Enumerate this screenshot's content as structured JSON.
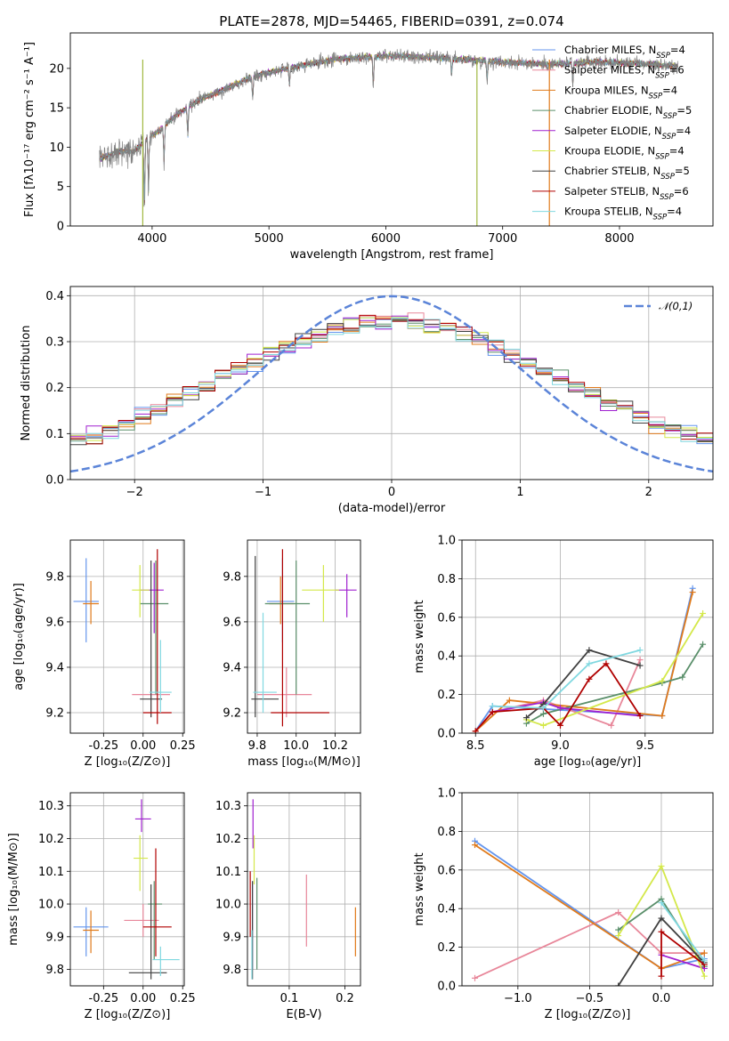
{
  "title": "PLATE=2878, MJD=54465, FIBERID=0391, z=0.074",
  "models": [
    {
      "label": "Chabrier MILES, N",
      "sub": "SSP",
      "n": "=4",
      "color": "#6495ED"
    },
    {
      "label": "Salpeter MILES, N",
      "sub": "SSP",
      "n": "=6",
      "color": "#E8879A"
    },
    {
      "label": "Kroupa MILES, N",
      "sub": "SSP",
      "n": "=4",
      "color": "#E07B1C"
    },
    {
      "label": "Chabrier ELODIE, N",
      "sub": "SSP",
      "n": "=5",
      "color": "#5A8F6A"
    },
    {
      "label": "Salpeter ELODIE, N",
      "sub": "SSP",
      "n": "=4",
      "color": "#A020D0"
    },
    {
      "label": "Kroupa ELODIE, N",
      "sub": "SSP",
      "n": "=4",
      "color": "#D4E84A"
    },
    {
      "label": "Chabrier STELIB, N",
      "sub": "SSP",
      "n": "=5",
      "color": "#404040"
    },
    {
      "label": "Salpeter STELIB, N",
      "sub": "SSP",
      "n": "=6",
      "color": "#B00000"
    },
    {
      "label": "Kroupa STELIB, N",
      "sub": "SSP",
      "n": "=4",
      "color": "#80D8E0"
    }
  ],
  "chart_data": [
    {
      "type": "line",
      "panel": "spectrum",
      "xlabel": "wavelength [Angstrom, rest frame]",
      "ylabel": "Flux [fλ10⁻¹⁷ erg cm⁻² s⁻¹ A⁻¹]",
      "xlim": [
        3300,
        8800
      ],
      "ylim": [
        0,
        24.5
      ],
      "xticks": [
        4000,
        5000,
        6000,
        7000,
        8000
      ],
      "yticks": [
        0,
        5,
        10,
        15,
        20
      ],
      "data_color": "#808080",
      "continuum": [
        [
          3550,
          8.5
        ],
        [
          3700,
          9.5
        ],
        [
          3850,
          9.5
        ],
        [
          3950,
          11
        ],
        [
          4050,
          12
        ],
        [
          4200,
          14
        ],
        [
          4400,
          16
        ],
        [
          4600,
          17.2
        ],
        [
          4800,
          18.6
        ],
        [
          5000,
          19.5
        ],
        [
          5300,
          20.4
        ],
        [
          5600,
          21.2
        ],
        [
          6000,
          21.6
        ],
        [
          6300,
          21.4
        ],
        [
          6600,
          21.2
        ],
        [
          7000,
          20.8
        ],
        [
          7400,
          20.5
        ],
        [
          7800,
          20.8
        ],
        [
          8200,
          20.6
        ],
        [
          8500,
          20.2
        ]
      ],
      "absorption": [
        [
          3934,
          8.5
        ],
        [
          3969,
          7.5
        ],
        [
          4102,
          5
        ],
        [
          4305,
          4
        ],
        [
          4861,
          3
        ],
        [
          5175,
          2.5
        ],
        [
          5893,
          4
        ],
        [
          6563,
          2
        ],
        [
          6867,
          2.5
        ],
        [
          7600,
          3
        ]
      ],
      "artifacts": [
        {
          "x": 3920,
          "color": "#A0B840"
        },
        {
          "x": 6780,
          "color": "#A0B840"
        },
        {
          "x": 7400,
          "color": "#E07B1C"
        }
      ],
      "legend": "top-right",
      "grid": false
    },
    {
      "type": "line",
      "panel": "residual_histogram",
      "xlabel": "(data-model)/error",
      "ylabel": "Normed distribution",
      "xlim": [
        -2.5,
        2.5
      ],
      "ylim": [
        0,
        0.42
      ],
      "xticks": [
        -2,
        -1,
        0,
        1,
        2
      ],
      "yticks": [
        0.0,
        0.1,
        0.2,
        0.3,
        0.4
      ],
      "bins": 40,
      "reference": {
        "name": "𝒩(0,1)",
        "mu": 0,
        "sigma": 1,
        "color": "#5B84D8"
      },
      "legend": "top-right",
      "grid": true
    },
    {
      "type": "scatter",
      "panel": "Z_vs_age",
      "xlabel": "Z [log₁₀(Z/Z⊙)]",
      "ylabel": "age  [log₁₀(age/yr)]",
      "xlim": [
        -0.46,
        0.26
      ],
      "ylim": [
        9.11,
        9.96
      ],
      "xticks": [
        "-0.25",
        "0.00",
        "0.25"
      ],
      "xtickv": [
        -0.25,
        0,
        0.25
      ],
      "yticks": [
        "9.2",
        "9.4",
        "9.6",
        "9.8"
      ],
      "ytickv": [
        9.2,
        9.4,
        9.6,
        9.8
      ],
      "grid": true,
      "points": [
        {
          "m": 0,
          "x": -0.36,
          "y": 9.69,
          "xe": [
            -0.44,
            -0.28
          ],
          "ye": [
            9.51,
            9.88
          ]
        },
        {
          "m": 1,
          "x": 0.05,
          "y": 9.28,
          "xe": [
            -0.07,
            0.17
          ],
          "ye": [
            9.18,
            9.39
          ]
        },
        {
          "m": 2,
          "x": -0.33,
          "y": 9.68,
          "xe": [
            -0.38,
            -0.28
          ],
          "ye": [
            9.59,
            9.78
          ]
        },
        {
          "m": 3,
          "x": 0.08,
          "y": 9.68,
          "xe": [
            -0.02,
            0.16
          ],
          "ye": [
            9.28,
            9.87
          ]
        },
        {
          "m": 4,
          "x": 0.07,
          "y": 9.74,
          "xe": [
            -0.02,
            0.13
          ],
          "ye": [
            9.55,
            9.86
          ]
        },
        {
          "m": 5,
          "x": -0.02,
          "y": 9.74,
          "xe": [
            -0.07,
            0.04
          ],
          "ye": [
            9.62,
            9.85
          ]
        },
        {
          "m": 6,
          "x": 0.05,
          "y": 9.26,
          "xe": [
            -0.02,
            0.12
          ],
          "ye": [
            9.18,
            9.87
          ]
        },
        {
          "m": 7,
          "x": 0.09,
          "y": 9.2,
          "xe": [
            0.0,
            0.18
          ],
          "ye": [
            9.15,
            9.92
          ]
        },
        {
          "m": 8,
          "x": 0.11,
          "y": 9.29,
          "xe": [
            0.04,
            0.18
          ],
          "ye": [
            9.2,
            9.52
          ]
        }
      ]
    },
    {
      "type": "scatter",
      "panel": "mass_vs_age",
      "xlabel": "mass [log₁₀(M/M⊙)]",
      "ylabel": "",
      "xlim": [
        9.75,
        10.33
      ],
      "ylim": [
        9.11,
        9.96
      ],
      "xticks": [
        "9.8",
        "10.0",
        "10.2"
      ],
      "xtickv": [
        9.8,
        10.0,
        10.2
      ],
      "yticks": [
        "9.2",
        "9.4",
        "9.6",
        "9.8"
      ],
      "ytickv": [
        9.2,
        9.4,
        9.6,
        9.8
      ],
      "grid": true,
      "points": [
        {
          "m": 0,
          "x": 9.93,
          "y": 9.69,
          "xe": [
            9.85,
            9.99
          ],
          "ye": [
            9.51,
            9.88
          ]
        },
        {
          "m": 1,
          "x": 9.95,
          "y": 9.28,
          "xe": [
            9.8,
            10.08
          ],
          "ye": [
            9.18,
            9.4
          ]
        },
        {
          "m": 2,
          "x": 9.92,
          "y": 9.68,
          "xe": [
            9.86,
            9.99
          ],
          "ye": [
            9.59,
            9.8
          ]
        },
        {
          "m": 3,
          "x": 10.0,
          "y": 9.68,
          "xe": [
            9.84,
            10.07
          ],
          "ye": [
            9.28,
            9.87
          ]
        },
        {
          "m": 4,
          "x": 10.26,
          "y": 9.74,
          "xe": [
            10.2,
            10.31
          ],
          "ye": [
            9.62,
            9.81
          ]
        },
        {
          "m": 5,
          "x": 10.14,
          "y": 9.74,
          "xe": [
            10.03,
            10.22
          ],
          "ye": [
            9.6,
            9.85
          ]
        },
        {
          "m": 6,
          "x": 9.79,
          "y": 9.26,
          "xe": [
            9.77,
            9.91
          ],
          "ye": [
            9.18,
            9.89
          ]
        },
        {
          "m": 7,
          "x": 9.93,
          "y": 9.2,
          "xe": [
            9.87,
            10.17
          ],
          "ye": [
            9.14,
            9.92
          ]
        },
        {
          "m": 8,
          "x": 9.83,
          "y": 9.29,
          "xe": [
            9.78,
            9.9
          ],
          "ye": [
            9.2,
            9.64
          ]
        }
      ]
    },
    {
      "type": "line",
      "panel": "age_vs_mass_weight",
      "xlabel": "age  [log₁₀(age/yr)]",
      "ylabel": "mass weight",
      "xlim": [
        8.42,
        9.9
      ],
      "ylim": [
        0,
        1.0
      ],
      "xticks": [
        "8.5",
        "9.0",
        "9.5"
      ],
      "xtickv": [
        8.5,
        9.0,
        9.5
      ],
      "yticks": [
        "0.0",
        "0.2",
        "0.4",
        "0.6",
        "0.8",
        "1.0"
      ],
      "ytickv": [
        0,
        0.2,
        0.4,
        0.6,
        0.8,
        1.0
      ],
      "grid": true,
      "series": [
        {
          "m": 0,
          "x": [
            8.5,
            8.6,
            9.6,
            9.78
          ],
          "y": [
            0.01,
            0.14,
            0.09,
            0.75
          ]
        },
        {
          "m": 1,
          "x": [
            8.6,
            8.9,
            9.3,
            9.47
          ],
          "y": [
            0.11,
            0.17,
            0.04,
            0.38
          ]
        },
        {
          "m": 2,
          "x": [
            8.5,
            8.7,
            9.6,
            9.78
          ],
          "y": [
            0.01,
            0.17,
            0.09,
            0.73
          ]
        },
        {
          "m": 3,
          "x": [
            8.8,
            8.9,
            9.6,
            9.72,
            9.84
          ],
          "y": [
            0.05,
            0.1,
            0.26,
            0.29,
            0.46
          ]
        },
        {
          "m": 4,
          "x": [
            8.6,
            8.9,
            9.0,
            9.47
          ],
          "y": [
            0.11,
            0.16,
            0.13,
            0.09
          ]
        },
        {
          "m": 5,
          "x": [
            8.8,
            8.9,
            9.6,
            9.84
          ],
          "y": [
            0.07,
            0.04,
            0.27,
            0.62
          ]
        },
        {
          "m": 6,
          "x": [
            8.8,
            8.9,
            9.17,
            9.47
          ],
          "y": [
            0.08,
            0.15,
            0.43,
            0.35
          ]
        },
        {
          "m": 7,
          "x": [
            8.5,
            8.6,
            8.9,
            9.0,
            9.17,
            9.27,
            9.47
          ],
          "y": [
            0.01,
            0.11,
            0.13,
            0.04,
            0.28,
            0.36,
            0.09
          ]
        },
        {
          "m": 8,
          "x": [
            8.6,
            8.9,
            9.17,
            9.47
          ],
          "y": [
            0.14,
            0.13,
            0.36,
            0.43
          ]
        }
      ]
    },
    {
      "type": "scatter",
      "panel": "Z_vs_mass",
      "xlabel": "Z [log₁₀(Z/Z⊙)]",
      "ylabel": "mass [log₁₀(M/M⊙)]",
      "xlim": [
        -0.46,
        0.26
      ],
      "ylim": [
        9.75,
        10.34
      ],
      "xticks": [
        "-0.25",
        "0.00",
        "0.25"
      ],
      "xtickv": [
        -0.25,
        0,
        0.25
      ],
      "yticks": [
        "9.8",
        "9.9",
        "10.0",
        "10.1",
        "10.2",
        "10.3"
      ],
      "ytickv": [
        9.8,
        9.9,
        10.0,
        10.1,
        10.2,
        10.3
      ],
      "grid": true,
      "points": [
        {
          "m": 0,
          "x": -0.36,
          "y": 9.93,
          "xe": [
            -0.44,
            -0.22
          ],
          "ye": [
            9.84,
            9.99
          ]
        },
        {
          "m": 1,
          "x": 0.0,
          "y": 9.95,
          "xe": [
            -0.12,
            0.1
          ],
          "ye": [
            9.9,
            10.0
          ]
        },
        {
          "m": 2,
          "x": -0.33,
          "y": 9.92,
          "xe": [
            -0.38,
            -0.28
          ],
          "ye": [
            9.85,
            9.98
          ]
        },
        {
          "m": 3,
          "x": 0.07,
          "y": 10.0,
          "xe": [
            0.03,
            0.12
          ],
          "ye": [
            9.83,
            10.07
          ]
        },
        {
          "m": 4,
          "x": -0.01,
          "y": 10.26,
          "xe": [
            -0.05,
            0.05
          ],
          "ye": [
            10.22,
            10.32
          ]
        },
        {
          "m": 5,
          "x": -0.02,
          "y": 10.14,
          "xe": [
            -0.06,
            0.03
          ],
          "ye": [
            10.04,
            10.21
          ]
        },
        {
          "m": 6,
          "x": 0.05,
          "y": 9.79,
          "xe": [
            -0.09,
            0.15
          ],
          "ye": [
            9.77,
            10.06
          ]
        },
        {
          "m": 7,
          "x": 0.08,
          "y": 9.93,
          "xe": [
            0.0,
            0.18
          ],
          "ye": [
            9.84,
            10.17
          ]
        },
        {
          "m": 8,
          "x": 0.11,
          "y": 9.83,
          "xe": [
            0.06,
            0.23
          ],
          "ye": [
            9.78,
            9.87
          ]
        }
      ]
    },
    {
      "type": "scatter",
      "panel": "EBV_vs_mass",
      "xlabel": "E(B-V)",
      "ylabel": "",
      "xlim": [
        0.025,
        0.228
      ],
      "ylim": [
        9.75,
        10.34
      ],
      "xticks": [
        "0.1",
        "0.2"
      ],
      "xtickv": [
        0.1,
        0.2
      ],
      "yticks": [
        "9.8",
        "9.9",
        "10.0",
        "10.1",
        "10.2",
        "10.3"
      ],
      "ytickv": [
        9.8,
        9.9,
        10.0,
        10.1,
        10.2,
        10.3
      ],
      "grid": true,
      "points": [
        {
          "m": 0,
          "x": 0.034,
          "y": 9.93,
          "ye": [
            9.8,
            10.07
          ]
        },
        {
          "m": 1,
          "x": 0.131,
          "y": 9.95,
          "ye": [
            9.87,
            10.09
          ]
        },
        {
          "m": 2,
          "x": 0.219,
          "y": 9.9,
          "ye": [
            9.84,
            9.99
          ]
        },
        {
          "m": 3,
          "x": 0.042,
          "y": 10.0,
          "ye": [
            9.8,
            10.08
          ]
        },
        {
          "m": 4,
          "x": 0.035,
          "y": 10.26,
          "ye": [
            10.17,
            10.32
          ]
        },
        {
          "m": 5,
          "x": 0.037,
          "y": 10.14,
          "ye": [
            10.06,
            10.21
          ]
        },
        {
          "m": 6,
          "x": 0.034,
          "y": 9.79,
          "ye": [
            9.77,
            10.07
          ]
        },
        {
          "m": 7,
          "x": 0.03,
          "y": 9.93,
          "ye": [
            9.9,
            10.1
          ]
        },
        {
          "m": 8,
          "x": 0.033,
          "y": 9.83,
          "ye": [
            9.77,
            9.92
          ]
        }
      ]
    },
    {
      "type": "line",
      "panel": "Z_vs_mass_weight",
      "xlabel": "Z [log₁₀(Z/Z⊙)]",
      "ylabel": "mass weight",
      "xlim": [
        -1.39,
        0.36
      ],
      "ylim": [
        0,
        1.0
      ],
      "xticks": [
        "−1.0",
        "−0.5",
        "0.0"
      ],
      "xtickv": [
        -1.0,
        -0.5,
        0.0
      ],
      "yticks": [
        "0.0",
        "0.2",
        "0.4",
        "0.6",
        "0.8",
        "1.0"
      ],
      "ytickv": [
        0,
        0.2,
        0.4,
        0.6,
        0.8,
        1.0
      ],
      "grid": true,
      "series": [
        {
          "m": 0,
          "x": [
            -1.3,
            0.0,
            0.3
          ],
          "y": [
            0.75,
            0.09,
            0.14
          ]
        },
        {
          "m": 1,
          "x": [
            -1.3,
            -0.3,
            0.0,
            0.3
          ],
          "y": [
            0.04,
            0.38,
            0.17,
            0.17
          ]
        },
        {
          "m": 2,
          "x": [
            -1.3,
            0.0,
            0.3
          ],
          "y": [
            0.73,
            0.09,
            0.17
          ]
        },
        {
          "m": 3,
          "x": [
            -0.3,
            0.0,
            0.3
          ],
          "y": [
            0.29,
            0.45,
            0.1
          ]
        },
        {
          "m": 4,
          "x": [
            0.0,
            0.3
          ],
          "y": [
            0.16,
            0.09
          ]
        },
        {
          "m": 5,
          "x": [
            -0.3,
            0.0,
            0.3
          ],
          "y": [
            0.26,
            0.62,
            0.05
          ]
        },
        {
          "m": 6,
          "x": [
            -0.3,
            0.0,
            0.3
          ],
          "y": [
            0.0,
            0.35,
            0.12
          ]
        },
        {
          "m": 7,
          "x": [
            0.0,
            0.0,
            0.3
          ],
          "y": [
            0.05,
            0.28,
            0.11
          ]
        },
        {
          "m": 8,
          "x": [
            0.0,
            0.3
          ],
          "y": [
            0.43,
            0.13
          ]
        }
      ]
    }
  ]
}
